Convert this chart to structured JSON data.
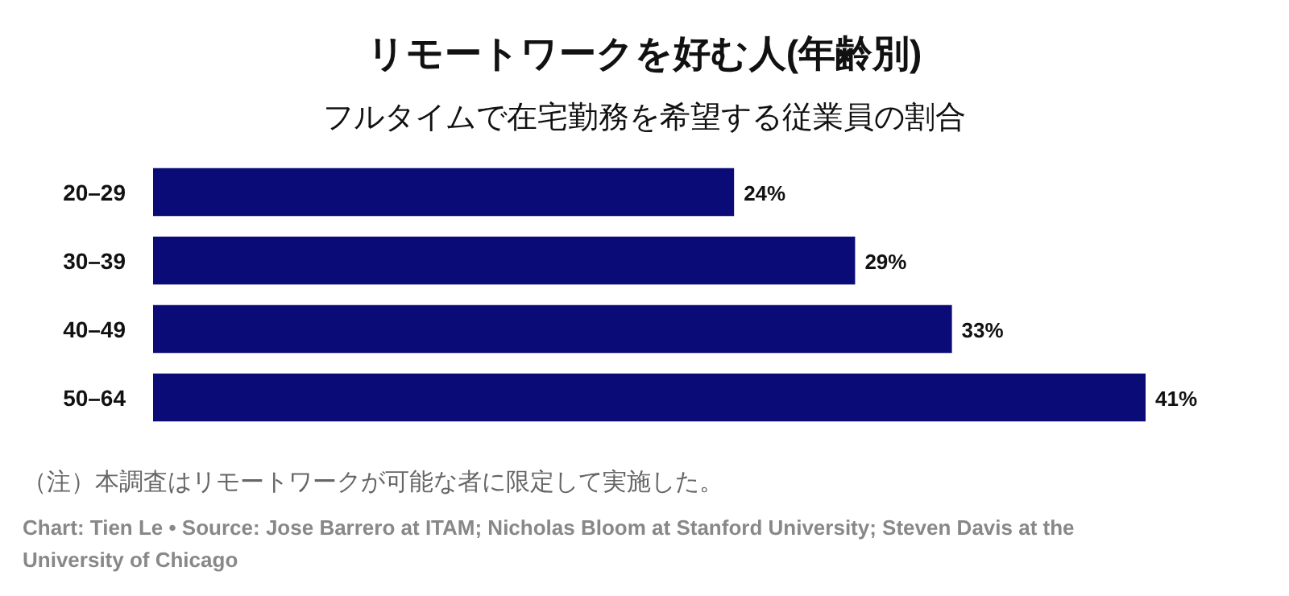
{
  "chart_data": {
    "type": "bar",
    "orientation": "horizontal",
    "title": "リモートワークを好む人(年齢別)",
    "subtitle": "フルタイムで在宅勤務を希望する従業員の割合",
    "categories": [
      "20–29",
      "30–39",
      "40–49",
      "50–64"
    ],
    "values": [
      24,
      29,
      33,
      41
    ],
    "value_labels": [
      "24%",
      "29%",
      "33%",
      "41%"
    ],
    "color": "#0b0b78",
    "annotations": [
      "（注）本調査はリモートワークが可能な者に限定して実施した。",
      "Chart: Tien Le • Source: Jose Barrero at ITAM; Nicholas Bloom at Stanford University; Steven Davis at the University of Chicago"
    ]
  }
}
